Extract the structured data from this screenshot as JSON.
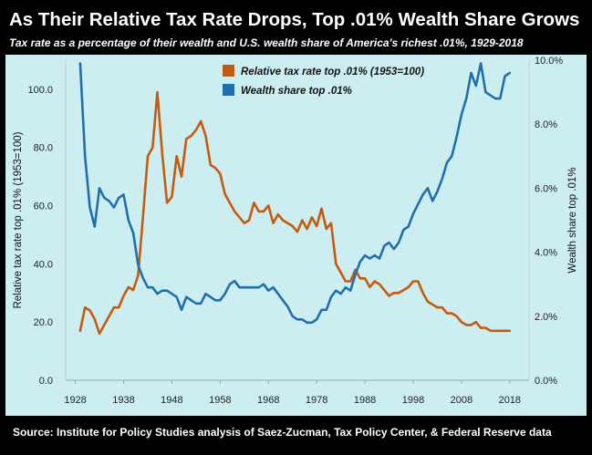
{
  "title": "As Their Relative Tax Rate Drops, Top .01% Wealth Share Grows",
  "subtitle": "Tax rate as a percentage of their wealth and U.S. wealth share of America's richest .01%, 1929-2018",
  "source": "Source: Institute for Policy Studies analysis of Saez-Zucman, Tax Policy Center, & Federal Reserve data",
  "colors": {
    "tax_series": "#c55a11",
    "wealth_series": "#1f6fae",
    "plot_background": "#cdeef0",
    "frame": "#000000"
  },
  "chart_data": {
    "type": "line",
    "title": "As Their Relative Tax Rate Drops, Top .01% Wealth Share Grows",
    "subtitle": "Tax rate as a percentage of their wealth and U.S. wealth share of America's richest .01%, 1929-2018",
    "xlabel": "",
    "ylabel": "Relative tax rate top .01% (1953=100)",
    "y2label": "Wealth share top .01%",
    "xlim": [
      1926,
      2022
    ],
    "ylim": [
      0,
      110
    ],
    "y2lim": [
      0,
      10
    ],
    "x_ticks": [
      "1928",
      "1938",
      "1948",
      "1958",
      "1968",
      "1978",
      "1988",
      "1998",
      "2008",
      "2018"
    ],
    "y_ticks": [
      "0.0",
      "20.0",
      "40.0",
      "60.0",
      "80.0",
      "100.0"
    ],
    "y2_ticks": [
      "0.0%",
      "2.0%",
      "4.0%",
      "6.0%",
      "8.0%",
      "10.0%"
    ],
    "grid": false,
    "legend": "top-center",
    "series": [
      {
        "name": "Relative tax rate top .01% (1953=100)",
        "axis": "left",
        "x": [
          1929,
          1930,
          1931,
          1932,
          1933,
          1934,
          1935,
          1936,
          1937,
          1938,
          1939,
          1940,
          1941,
          1942,
          1943,
          1944,
          1945,
          1946,
          1947,
          1948,
          1949,
          1950,
          1951,
          1952,
          1953,
          1954,
          1955,
          1956,
          1957,
          1958,
          1959,
          1960,
          1961,
          1962,
          1963,
          1964,
          1965,
          1966,
          1967,
          1968,
          1969,
          1970,
          1971,
          1972,
          1973,
          1974,
          1975,
          1976,
          1977,
          1978,
          1979,
          1980,
          1981,
          1982,
          1983,
          1984,
          1985,
          1986,
          1987,
          1988,
          1989,
          1990,
          1991,
          1992,
          1993,
          1994,
          1995,
          1996,
          1997,
          1998,
          1999,
          2000,
          2001,
          2002,
          2003,
          2004,
          2005,
          2006,
          2007,
          2008,
          2009,
          2010,
          2011,
          2012,
          2013,
          2014,
          2015,
          2016,
          2017,
          2018
        ],
        "values": [
          17,
          25,
          24,
          21,
          16,
          19,
          22,
          25,
          25,
          29,
          32,
          31,
          36,
          56,
          77,
          80,
          99,
          78,
          61,
          63,
          77,
          70,
          83,
          84,
          86,
          89,
          84,
          74,
          73,
          71,
          64,
          61,
          58,
          56,
          54,
          55,
          61,
          58,
          58,
          60,
          54,
          57,
          55,
          54,
          53,
          51,
          55,
          52,
          56,
          53,
          59,
          52,
          54,
          40,
          37,
          34,
          34,
          38,
          35,
          35,
          32,
          34,
          33,
          31,
          29,
          30,
          30,
          31,
          32,
          34,
          34,
          30,
          27,
          26,
          25,
          25,
          23,
          23,
          22,
          20,
          19,
          19,
          20,
          18,
          18,
          17,
          17,
          17,
          17,
          17
        ],
        "values_adjusted_note": ""
      },
      {
        "name": "Wealth share top .01%",
        "axis": "right",
        "x": [
          1929,
          1930,
          1931,
          1932,
          1933,
          1934,
          1935,
          1936,
          1937,
          1938,
          1939,
          1940,
          1941,
          1942,
          1943,
          1944,
          1945,
          1946,
          1947,
          1948,
          1949,
          1950,
          1951,
          1952,
          1953,
          1954,
          1955,
          1956,
          1957,
          1958,
          1959,
          1960,
          1961,
          1962,
          1963,
          1964,
          1965,
          1966,
          1967,
          1968,
          1969,
          1970,
          1971,
          1972,
          1973,
          1974,
          1975,
          1976,
          1977,
          1978,
          1979,
          1980,
          1981,
          1982,
          1983,
          1984,
          1985,
          1986,
          1987,
          1988,
          1989,
          1990,
          1991,
          1992,
          1993,
          1994,
          1995,
          1996,
          1997,
          1998,
          1999,
          2000,
          2001,
          2002,
          2003,
          2004,
          2005,
          2006,
          2007,
          2008,
          2009,
          2010,
          2011,
          2012,
          2013,
          2014,
          2015,
          2016,
          2017,
          2018
        ],
        "values": [
          9.9,
          7.0,
          5.4,
          4.8,
          6.0,
          5.7,
          5.6,
          5.4,
          5.7,
          5.8,
          5.0,
          4.6,
          3.6,
          3.2,
          2.9,
          2.9,
          2.7,
          2.8,
          2.8,
          2.7,
          2.6,
          2.2,
          2.6,
          2.5,
          2.4,
          2.4,
          2.7,
          2.6,
          2.5,
          2.5,
          2.7,
          3.0,
          3.1,
          2.9,
          2.9,
          2.9,
          2.9,
          2.9,
          3.0,
          2.8,
          2.9,
          2.7,
          2.5,
          2.3,
          2.0,
          1.9,
          1.9,
          1.8,
          1.8,
          1.9,
          2.2,
          2.2,
          2.6,
          2.8,
          2.7,
          2.9,
          2.8,
          3.3,
          3.7,
          3.9,
          3.8,
          3.9,
          3.8,
          4.2,
          4.3,
          4.1,
          4.3,
          4.7,
          4.8,
          5.2,
          5.5,
          5.8,
          6.0,
          5.6,
          5.9,
          6.3,
          6.8,
          7.0,
          7.6,
          8.3,
          8.8,
          9.6,
          9.2,
          9.9,
          9.0,
          8.9,
          8.8,
          8.8,
          9.5,
          9.6
        ]
      }
    ]
  }
}
